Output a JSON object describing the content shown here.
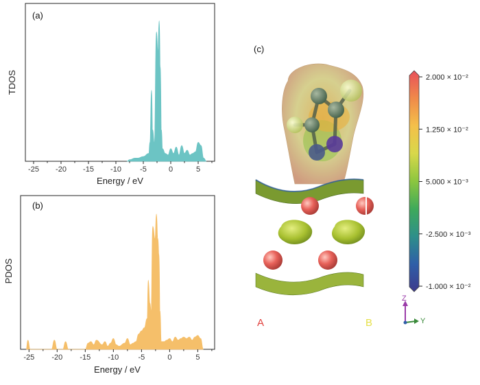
{
  "panel_labels": {
    "a": "(a)",
    "b": "(b)",
    "c": "(c)"
  },
  "chart_data": [
    {
      "type": "area",
      "panel": "(a)",
      "xlabel": "Energy / eV",
      "ylabel": "TDOS",
      "xlim": [
        -26.5,
        8
      ],
      "ylim": [
        0,
        1
      ],
      "xticks": [
        -25,
        -20,
        -15,
        -10,
        -5,
        0,
        5
      ],
      "color": "#6cc4c4",
      "series": [
        {
          "x": [
            -8,
            -7.5,
            -6.5,
            -6,
            -5,
            -4,
            -3.8,
            -3.5,
            -3.3,
            -3,
            -2.6,
            -2.35,
            -2.1,
            -1.9,
            -1.7,
            -1.5,
            -1,
            -0.5,
            0,
            0.5,
            1,
            1.5,
            2,
            2.5,
            3,
            3.5,
            4,
            4.5,
            5,
            5.5,
            6,
            6.5
          ],
          "y": [
            0,
            0.01,
            0.02,
            0.02,
            0.03,
            0.05,
            0.12,
            0.45,
            0.2,
            0.12,
            0.82,
            0.7,
            0.89,
            0.6,
            0.2,
            0.08,
            0.05,
            0.04,
            0.08,
            0.05,
            0.09,
            0.04,
            0.1,
            0.05,
            0.07,
            0.04,
            0.05,
            0.06,
            0.12,
            0.1,
            0.02,
            0
          ]
        }
      ]
    },
    {
      "type": "area",
      "panel": "(b)",
      "xlabel": "Energy / eV",
      "ylabel": "PDOS",
      "xlim": [
        -26.5,
        8
      ],
      "ylim": [
        0,
        1
      ],
      "xticks": [
        -25,
        -20,
        -15,
        -10,
        -5,
        0,
        5
      ],
      "color": "#f5bf6a",
      "series": [
        {
          "x": [
            -25.5,
            -25.2,
            -24.8,
            -21,
            -20.5,
            -20,
            -19,
            -18.5,
            -18,
            -15,
            -14.5,
            -14,
            -13.5,
            -13,
            -12,
            -11.5,
            -11,
            -10.5,
            -10,
            -9.5,
            -9,
            -8,
            -7.5,
            -7,
            -6.5,
            -6,
            -5.5,
            -5,
            -4.5,
            -4,
            -3.8,
            -3.5,
            -3.3,
            -3,
            -2.6,
            -2.35,
            -2.1,
            -1.9,
            -1.7,
            -1.5,
            -1,
            -0.5,
            0,
            0.5,
            1,
            1.5,
            2,
            2.5,
            3,
            3.5,
            4,
            4.5,
            5,
            5.5,
            6
          ],
          "y": [
            0,
            0.06,
            0,
            0,
            0.06,
            0,
            0,
            0.05,
            0,
            0,
            0.04,
            0.05,
            0.03,
            0.06,
            0.03,
            0.05,
            0.02,
            0.04,
            0.07,
            0.03,
            0.02,
            0.04,
            0.07,
            0.03,
            0.04,
            0.05,
            0.1,
            0.12,
            0.14,
            0.2,
            0.45,
            0.3,
            0.25,
            0.8,
            0.72,
            0.88,
            0.72,
            0.62,
            0.25,
            0.05,
            0.05,
            0.06,
            0.07,
            0.05,
            0.08,
            0.06,
            0.07,
            0.08,
            0.07,
            0.08,
            0.06,
            0.08,
            0.09,
            0.07,
            0
          ]
        }
      ]
    }
  ],
  "colorbar": {
    "tick_labels": [
      "2.000 × 10⁻²",
      "1.250 × 10⁻²",
      "5.000 × 10⁻³",
      "-2.500 × 10⁻³",
      "-1.000 × 10⁻²"
    ],
    "colors": [
      "#e8505a",
      "#f08a4a",
      "#f4c04a",
      "#d8d84a",
      "#8cc63f",
      "#3faa5a",
      "#2e8f8a",
      "#2f5fa8",
      "#3d3a8c"
    ]
  },
  "structure": {
    "site_a": "A",
    "site_b": "B",
    "axis_z": "Z",
    "axis_y": "Y",
    "colors": {
      "atom_red": "#e8625a",
      "atom_green": "#9ab43c",
      "site_a": "#e0403c",
      "site_b": "#e6e04a"
    }
  }
}
